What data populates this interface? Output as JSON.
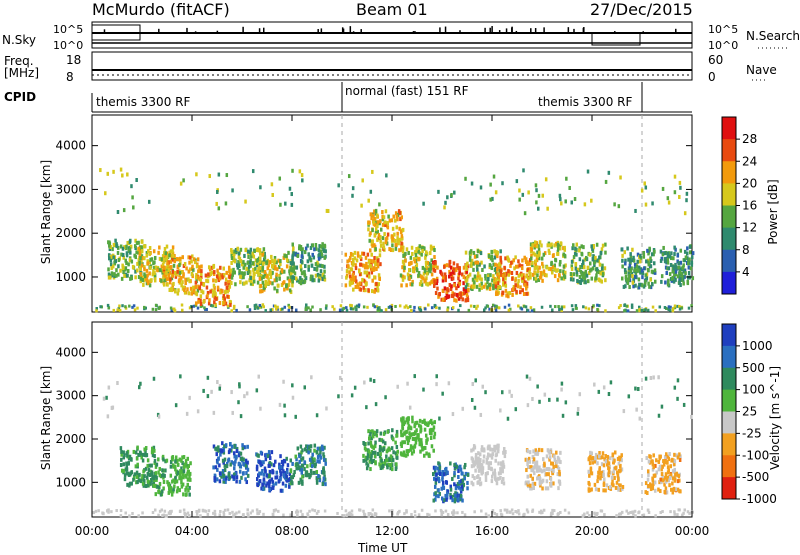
{
  "header": {
    "station": "McMurdo (fitACF)",
    "beam": "Beam 01",
    "date": "27/Dec/2015"
  },
  "left_labels": {
    "nsky": "N.Sky",
    "freq": "Freq.",
    "freq_unit": "[MHz]",
    "cpid": "CPID",
    "freq_tick_top": "18",
    "freq_tick_bottom": "8",
    "nsky_tick_top": "10^5",
    "nsky_tick_bottom": "10^0"
  },
  "right_labels": {
    "nsearch": "N.Search",
    "nave": "Nave",
    "nsearch_tick_top": "10^5",
    "nsearch_tick_bottom": "10^0",
    "nave_tick_top": "60",
    "nave_tick_bottom": "0"
  },
  "cpid_segments": [
    {
      "label": "themis 3300 RF",
      "start_h": 0,
      "end_h": 10
    },
    {
      "label": "normal (fast) 151 RF",
      "start_h": 10,
      "end_h": 22
    },
    {
      "label": "themis 3300 RF",
      "start_h": 22,
      "end_h": 24
    }
  ],
  "xaxis": {
    "label": "Time UT",
    "ticks": [
      "00:00",
      "04:00",
      "08:00",
      "12:00",
      "16:00",
      "20:00",
      "00:00"
    ],
    "range_hours": [
      0,
      24
    ]
  },
  "chart_data": [
    {
      "type": "heatmap",
      "title": "",
      "ylabel": "Slant Range [km]",
      "yticks": [
        "1000",
        "2000",
        "3000",
        "4000"
      ],
      "ylim": [
        200,
        4700
      ],
      "colorbar": {
        "label": "Power [dB]",
        "ticks": [
          "4",
          "8",
          "12",
          "16",
          "20",
          "24",
          "28"
        ],
        "range": [
          0,
          32
        ],
        "colors": [
          "#1f1fd9",
          "#2a5fb0",
          "#2f8a6e",
          "#55a640",
          "#d6c81c",
          "#f29a0c",
          "#e84a10",
          "#e01010"
        ]
      },
      "regions": [
        {
          "t": 1.3,
          "r": 1450,
          "v": 14
        },
        {
          "t": 2.5,
          "r": 1300,
          "v": 18
        },
        {
          "t": 3.5,
          "r": 1100,
          "v": 20
        },
        {
          "t": 4.8,
          "r": 850,
          "v": 22
        },
        {
          "t": 6.2,
          "r": 1250,
          "v": 14
        },
        {
          "t": 7.3,
          "r": 1150,
          "v": 18
        },
        {
          "t": 8.6,
          "r": 1350,
          "v": 12
        },
        {
          "t": 10.8,
          "r": 1150,
          "v": 22
        },
        {
          "t": 11.7,
          "r": 2100,
          "v": 20
        },
        {
          "t": 13.0,
          "r": 1300,
          "v": 18
        },
        {
          "t": 14.3,
          "r": 950,
          "v": 26
        },
        {
          "t": 15.6,
          "r": 1200,
          "v": 16
        },
        {
          "t": 16.8,
          "r": 1050,
          "v": 22
        },
        {
          "t": 18.2,
          "r": 1400,
          "v": 18
        },
        {
          "t": 19.8,
          "r": 1350,
          "v": 14
        },
        {
          "t": 21.8,
          "r": 1250,
          "v": 12
        },
        {
          "t": 23.4,
          "r": 1300,
          "v": 10
        }
      ]
    },
    {
      "type": "heatmap",
      "title": "",
      "ylabel": "Slant Range [km]",
      "yticks": [
        "1000",
        "2000",
        "3000",
        "4000"
      ],
      "ylim": [
        200,
        4700
      ],
      "colorbar": {
        "label": "Velocity [m s^-1]",
        "ticks": [
          "1000",
          "500",
          "100",
          "25",
          "-25",
          "-100",
          "-500",
          "-1000"
        ],
        "range": [
          1000,
          -1000
        ],
        "colors": [
          "#1f3fbf",
          "#2a6fc0",
          "#2f8a5e",
          "#4fb53c",
          "#c8c8c8",
          "#f2a020",
          "#f07010",
          "#e02010"
        ]
      },
      "regions": [
        {
          "t": 1.8,
          "r": 1400,
          "v": 300
        },
        {
          "t": 3.2,
          "r": 1200,
          "v": 200
        },
        {
          "t": 5.5,
          "r": 1500,
          "v": 600
        },
        {
          "t": 7.2,
          "r": 1300,
          "v": 800
        },
        {
          "t": 8.6,
          "r": 1450,
          "v": 400
        },
        {
          "t": 11.5,
          "r": 1800,
          "v": 250
        },
        {
          "t": 13.0,
          "r": 2100,
          "v": 150
        },
        {
          "t": 14.3,
          "r": 1050,
          "v": 600
        },
        {
          "t": 15.8,
          "r": 1450,
          "v": -80
        },
        {
          "t": 18.0,
          "r": 1350,
          "v": -200
        },
        {
          "t": 20.5,
          "r": 1300,
          "v": -300
        },
        {
          "t": 22.8,
          "r": 1250,
          "v": -350
        }
      ]
    }
  ]
}
